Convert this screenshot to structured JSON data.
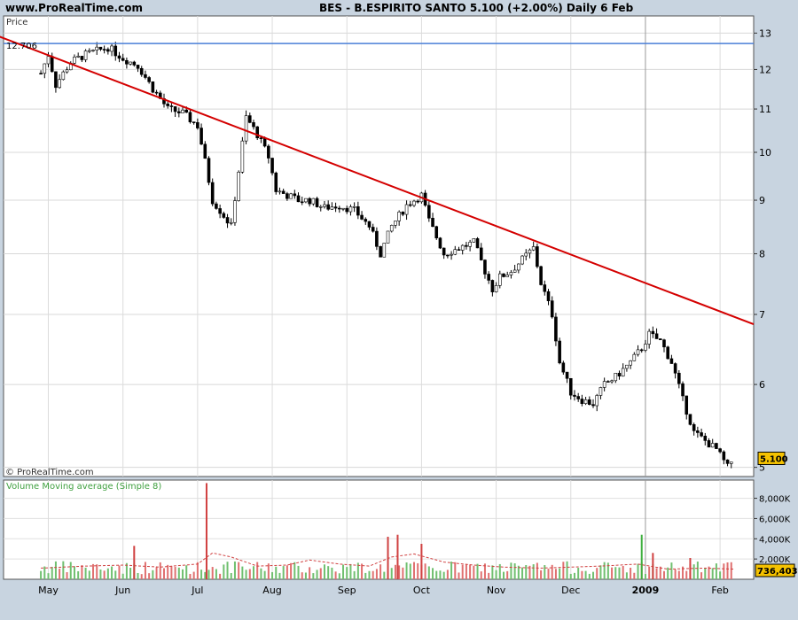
{
  "header": {
    "site": "www.ProRealTime.com",
    "title": "BES - B.ESPIRITO SANTO    5.100 (+2.00%)    Daily  6 Feb"
  },
  "panels": {
    "price_label": "Price",
    "volume_label": "Volume Moving average (Simple 8)",
    "watermark": "© ProRealTime.com"
  },
  "colors": {
    "background": "#c8d4e0",
    "plot": "#ffffff",
    "trendline": "#d40000",
    "resistance": "#4a7fd8",
    "volume_bar": "#e06060",
    "volume_ma": "#d04040",
    "last_badge": "#f5c200"
  },
  "chart_data": [
    {
      "type": "candlestick",
      "name": "price",
      "y_axis": "log",
      "ylim": [
        4.9,
        13.5
      ],
      "yticks": [
        5,
        6,
        7,
        8,
        9,
        10,
        11,
        12,
        13
      ],
      "xticks": [
        {
          "label": "May",
          "month": 4
        },
        {
          "label": "Jun",
          "month": 5
        },
        {
          "label": "Jul",
          "month": 6
        },
        {
          "label": "Aug",
          "month": 7
        },
        {
          "label": "Sep",
          "month": 8
        },
        {
          "label": "Oct",
          "month": 9
        },
        {
          "label": "Nov",
          "month": 10
        },
        {
          "label": "Dec",
          "month": 11
        },
        {
          "label": "2009",
          "month": 12
        },
        {
          "label": "Feb",
          "month": 13
        }
      ],
      "resistance_level": {
        "value": 12.706,
        "label": "12.706"
      },
      "last_value": {
        "value": 5.1,
        "label": "5.100"
      },
      "close_path": [
        [
          3.9,
          11.9
        ],
        [
          4.0,
          12.4
        ],
        [
          4.1,
          11.6
        ],
        [
          4.3,
          12.2
        ],
        [
          4.5,
          12.4
        ],
        [
          4.8,
          12.6
        ],
        [
          5.0,
          12.3
        ],
        [
          5.2,
          12.1
        ],
        [
          5.4,
          11.5
        ],
        [
          5.6,
          11.0
        ],
        [
          5.8,
          10.9
        ],
        [
          6.0,
          10.6
        ],
        [
          6.1,
          9.8
        ],
        [
          6.2,
          9.0
        ],
        [
          6.35,
          8.7
        ],
        [
          6.45,
          8.5
        ],
        [
          6.55,
          9.6
        ],
        [
          6.65,
          10.8
        ],
        [
          6.8,
          10.4
        ],
        [
          6.95,
          9.9
        ],
        [
          7.05,
          9.2
        ],
        [
          7.2,
          9.1
        ],
        [
          7.35,
          9.0
        ],
        [
          7.5,
          9.0
        ],
        [
          7.7,
          8.85
        ],
        [
          7.9,
          8.9
        ],
        [
          8.1,
          8.8
        ],
        [
          8.3,
          8.5
        ],
        [
          8.45,
          8.0
        ],
        [
          8.6,
          8.5
        ],
        [
          8.8,
          8.9
        ],
        [
          9.0,
          9.1
        ],
        [
          9.1,
          8.6
        ],
        [
          9.3,
          8.0
        ],
        [
          9.5,
          8.1
        ],
        [
          9.7,
          8.2
        ],
        [
          9.85,
          7.7
        ],
        [
          9.95,
          7.4
        ],
        [
          10.05,
          7.6
        ],
        [
          10.2,
          7.7
        ],
        [
          10.35,
          7.9
        ],
        [
          10.5,
          8.1
        ],
        [
          10.6,
          7.5
        ],
        [
          10.75,
          7.0
        ],
        [
          10.85,
          6.3
        ],
        [
          11.0,
          5.9
        ],
        [
          11.15,
          5.8
        ],
        [
          11.3,
          5.75
        ],
        [
          11.45,
          6.0
        ],
        [
          11.6,
          6.1
        ],
        [
          11.8,
          6.3
        ],
        [
          11.95,
          6.5
        ],
        [
          12.05,
          6.7
        ],
        [
          12.2,
          6.6
        ],
        [
          12.35,
          6.3
        ],
        [
          12.5,
          5.8
        ],
        [
          12.65,
          5.4
        ],
        [
          12.8,
          5.3
        ],
        [
          12.95,
          5.2
        ],
        [
          13.1,
          5.0
        ],
        [
          13.18,
          5.1
        ]
      ],
      "trendline": [
        [
          3.1,
          13.1
        ],
        [
          13.45,
          6.85
        ]
      ]
    },
    {
      "type": "bar",
      "name": "volume",
      "ylim": [
        0,
        9800000
      ],
      "yticks": [
        {
          "value": 2000000,
          "label": "2,000K"
        },
        {
          "value": 4000000,
          "label": "4,000K"
        },
        {
          "value": 6000000,
          "label": "6,000K"
        },
        {
          "value": 8000000,
          "label": "8,000K"
        }
      ],
      "last_value": {
        "value": 736403,
        "label": "736,403"
      },
      "spikes": [
        [
          5.15,
          3300000
        ],
        [
          6.12,
          9500000
        ],
        [
          8.55,
          4200000
        ],
        [
          8.68,
          4400000
        ],
        [
          9.0,
          3500000
        ],
        [
          11.95,
          4400000
        ],
        [
          12.1,
          2600000
        ],
        [
          12.6,
          2100000
        ]
      ],
      "ma_path": [
        [
          3.9,
          1100000
        ],
        [
          4.5,
          1300000
        ],
        [
          5.0,
          1400000
        ],
        [
          5.5,
          1200000
        ],
        [
          6.0,
          1500000
        ],
        [
          6.2,
          2600000
        ],
        [
          6.45,
          2200000
        ],
        [
          6.8,
          1300000
        ],
        [
          7.2,
          1400000
        ],
        [
          7.5,
          1900000
        ],
        [
          7.9,
          1500000
        ],
        [
          8.3,
          1300000
        ],
        [
          8.6,
          2200000
        ],
        [
          8.9,
          2500000
        ],
        [
          9.3,
          1700000
        ],
        [
          9.7,
          1400000
        ],
        [
          10.1,
          1200000
        ],
        [
          10.6,
          1100000
        ],
        [
          11.0,
          1200000
        ],
        [
          11.4,
          1300000
        ],
        [
          11.9,
          1500000
        ],
        [
          12.3,
          1000000
        ],
        [
          12.8,
          1100000
        ],
        [
          13.2,
          1000000
        ]
      ]
    }
  ]
}
